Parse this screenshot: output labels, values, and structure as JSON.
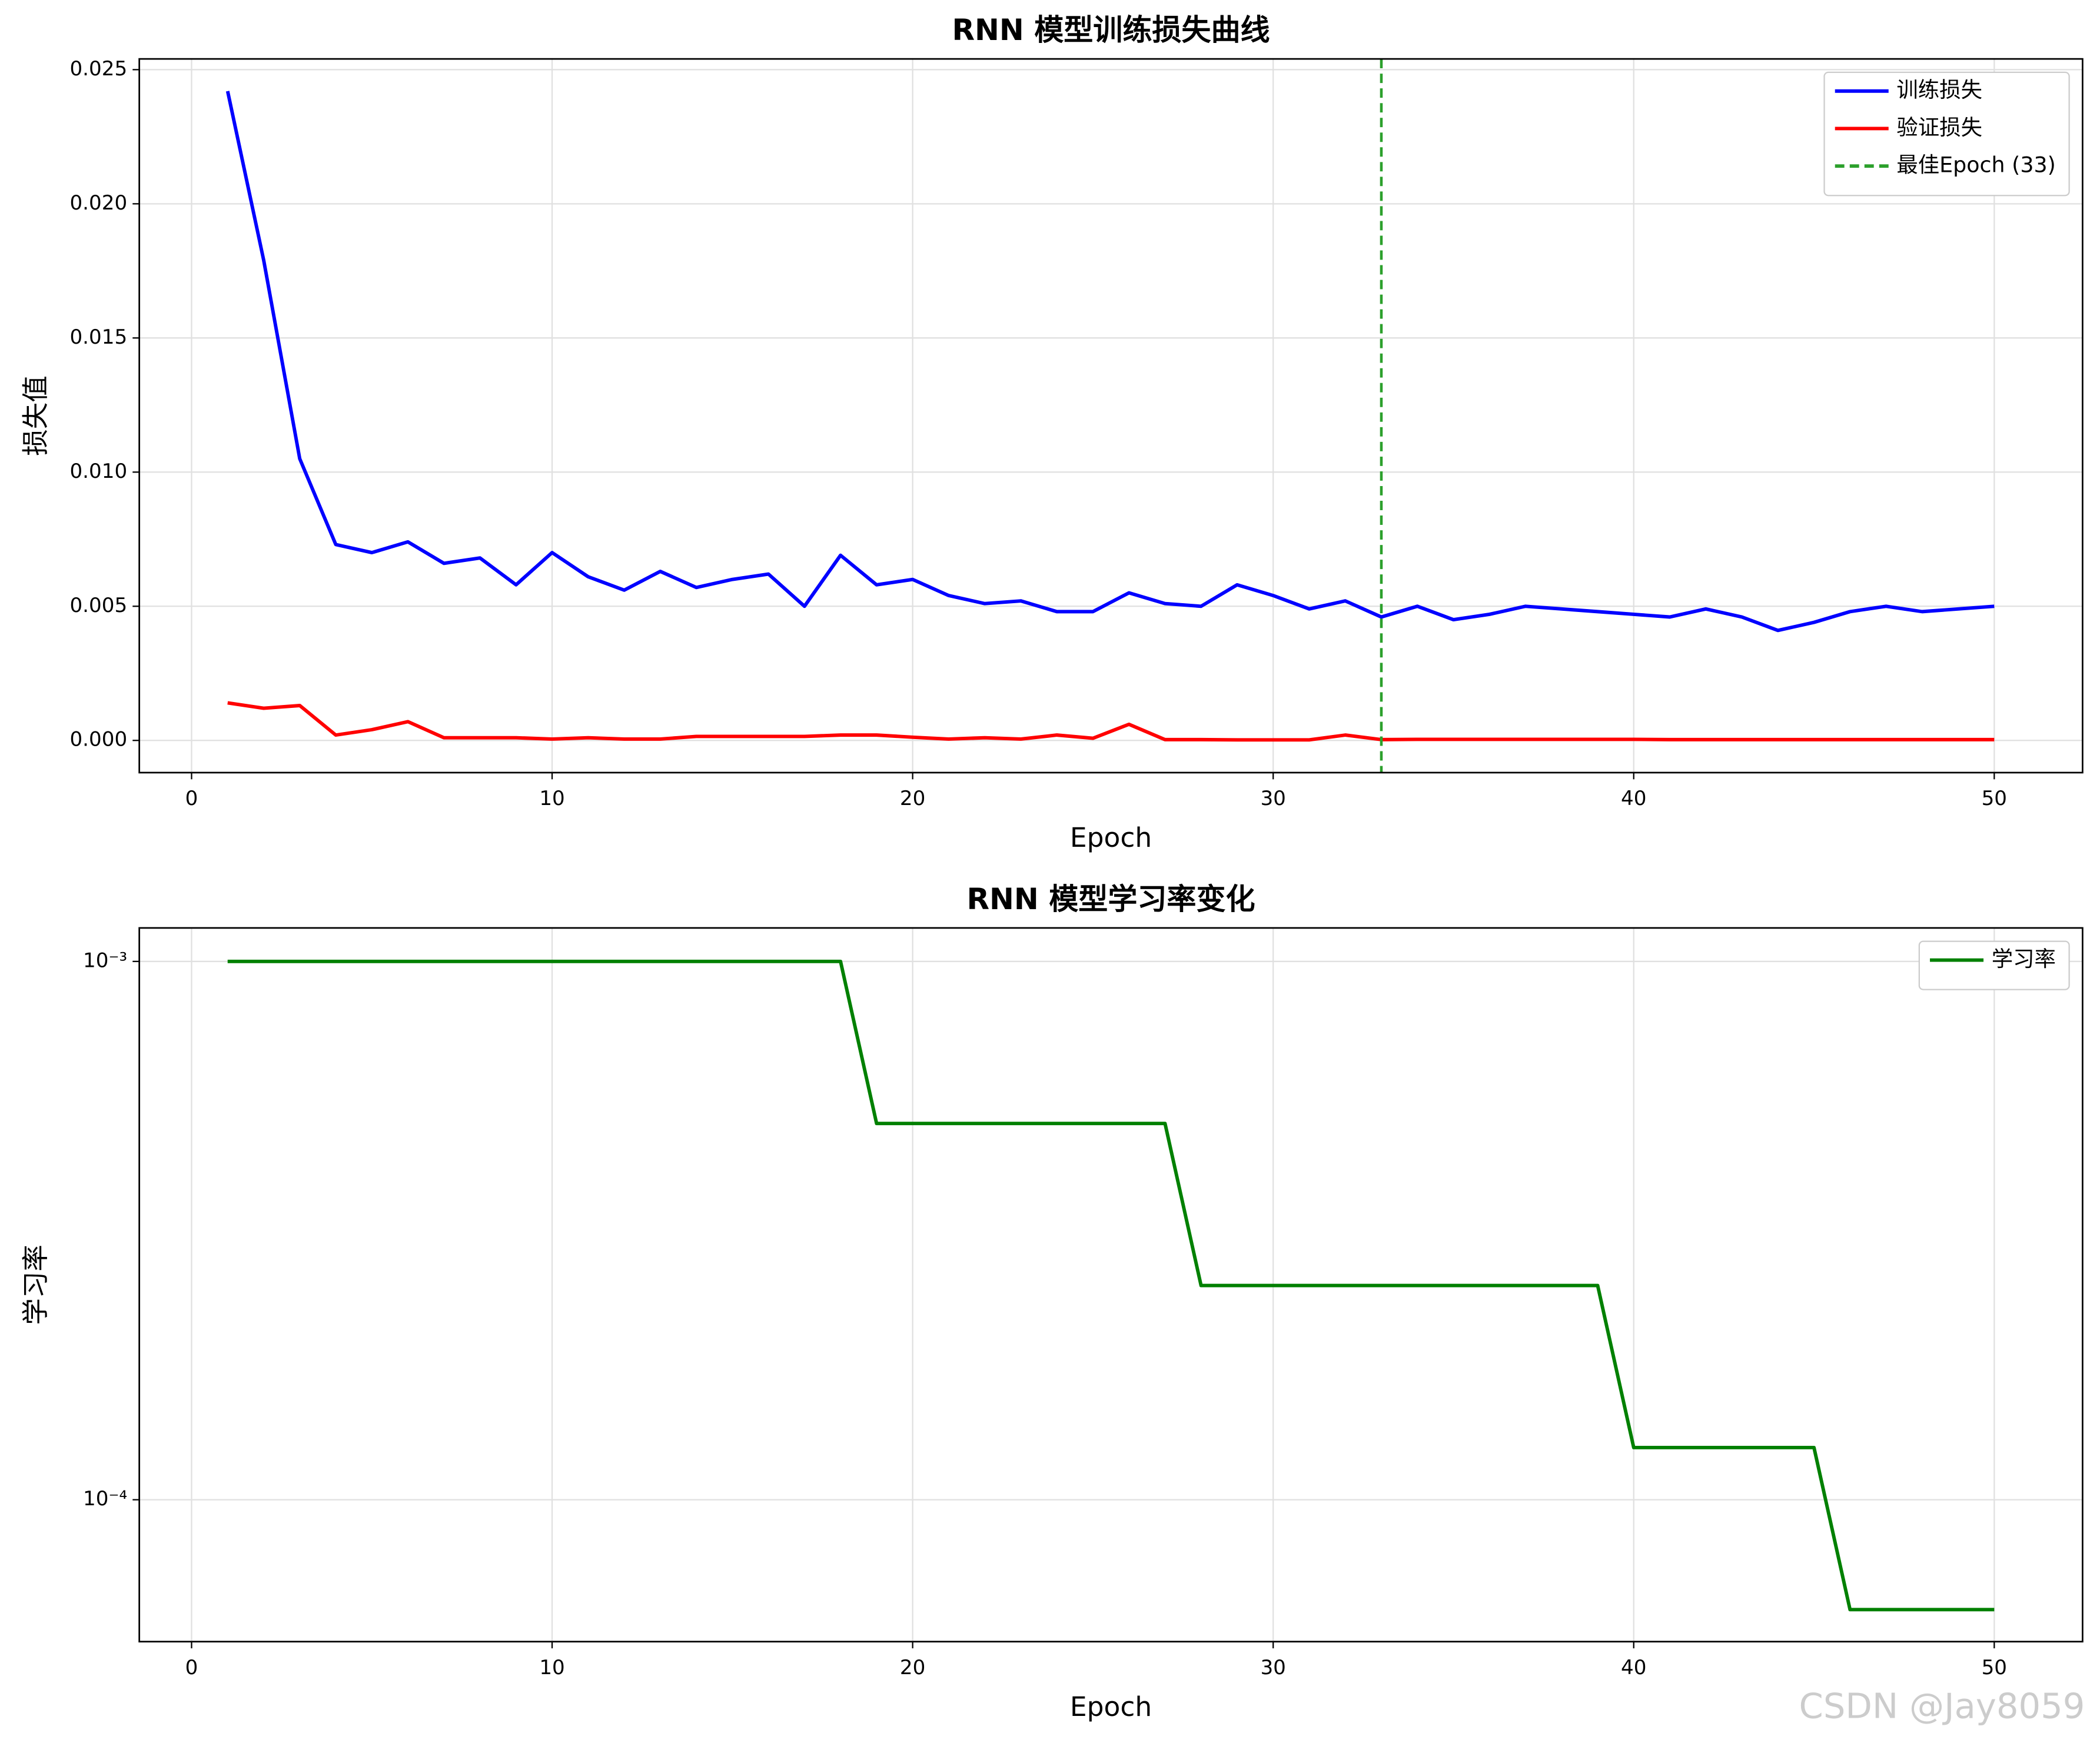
{
  "chart_data": [
    {
      "type": "line",
      "title": "RNN 模型训练损失曲线",
      "xlabel": "Epoch",
      "ylabel": "损失值",
      "x": [
        1,
        2,
        3,
        4,
        5,
        6,
        7,
        8,
        9,
        10,
        11,
        12,
        13,
        14,
        15,
        16,
        17,
        18,
        19,
        20,
        21,
        22,
        23,
        24,
        25,
        26,
        27,
        28,
        29,
        30,
        31,
        32,
        33,
        34,
        35,
        36,
        37,
        38,
        39,
        40,
        41,
        42,
        43,
        44,
        45,
        46,
        47,
        48,
        49,
        50
      ],
      "series": [
        {
          "name": "训练损失",
          "color": "#0000ff",
          "values": [
            0.0242,
            0.0179,
            0.0105,
            0.0073,
            0.007,
            0.0074,
            0.0066,
            0.0068,
            0.0058,
            0.007,
            0.0061,
            0.0056,
            0.0063,
            0.0057,
            0.006,
            0.0062,
            0.005,
            0.0069,
            0.0058,
            0.006,
            0.0054,
            0.0051,
            0.0052,
            0.0048,
            0.0048,
            0.0055,
            0.0051,
            0.005,
            0.0058,
            0.0054,
            0.0049,
            0.0052,
            0.0046,
            0.005,
            0.0045,
            0.0047,
            0.005,
            0.0049,
            0.0048,
            0.0047,
            0.0046,
            0.0049,
            0.0046,
            0.0041,
            0.0044,
            0.0048,
            0.005,
            0.0048,
            0.0049,
            0.005
          ]
        },
        {
          "name": "验证损失",
          "color": "#ff0000",
          "values": [
            0.0014,
            0.0012,
            0.0013,
            0.0002,
            0.0004,
            0.0007,
            0.0001,
            0.0001,
            0.0001,
            5e-05,
            0.0001,
            5e-05,
            5e-05,
            0.00015,
            0.00015,
            0.00015,
            0.00015,
            0.0002,
            0.0002,
            0.00012,
            5e-05,
            0.0001,
            5e-05,
            0.0002,
            8e-05,
            0.0006,
            3e-05,
            3e-05,
            2e-05,
            2e-05,
            2e-05,
            0.0002,
            3e-05,
            4e-05,
            4e-05,
            4e-05,
            4e-05,
            4e-05,
            4e-05,
            4e-05,
            3e-05,
            3e-05,
            3e-05,
            3e-05,
            3e-05,
            3e-05,
            3e-05,
            3e-05,
            3e-05,
            3e-05
          ]
        }
      ],
      "vline": {
        "name": "最佳Epoch (33)",
        "x": 33,
        "color": "#2ca02c"
      },
      "xlim": [
        -1.45,
        52.45
      ],
      "ylim": [
        -0.0012,
        0.0254
      ],
      "xticks": [
        0,
        10,
        20,
        30,
        40,
        50
      ],
      "yticks": [
        {
          "value": 0,
          "label": "0.000"
        },
        {
          "value": 0.005,
          "label": "0.005"
        },
        {
          "value": 0.01,
          "label": "0.010"
        },
        {
          "value": 0.015,
          "label": "0.015"
        },
        {
          "value": 0.02,
          "label": "0.020"
        },
        {
          "value": 0.025,
          "label": "0.025"
        }
      ],
      "grid": true,
      "legend": "upper right"
    },
    {
      "type": "line",
      "title": "RNN 模型学习率变化",
      "xlabel": "Epoch",
      "ylabel": "学习率",
      "yscale": "log",
      "x": [
        1,
        2,
        3,
        4,
        5,
        6,
        7,
        8,
        9,
        10,
        11,
        12,
        13,
        14,
        15,
        16,
        17,
        18,
        19,
        20,
        21,
        22,
        23,
        24,
        25,
        26,
        27,
        28,
        29,
        30,
        31,
        32,
        33,
        34,
        35,
        36,
        37,
        38,
        39,
        40,
        41,
        42,
        43,
        44,
        45,
        46,
        47,
        48,
        49,
        50
      ],
      "series": [
        {
          "name": "学习率",
          "color": "#008000",
          "values": [
            0.001,
            0.001,
            0.001,
            0.001,
            0.001,
            0.001,
            0.001,
            0.001,
            0.001,
            0.001,
            0.001,
            0.001,
            0.001,
            0.001,
            0.001,
            0.001,
            0.001,
            0.001,
            0.0005,
            0.0005,
            0.0005,
            0.0005,
            0.0005,
            0.0005,
            0.0005,
            0.0005,
            0.0005,
            0.00025,
            0.00025,
            0.00025,
            0.00025,
            0.00025,
            0.00025,
            0.00025,
            0.00025,
            0.00025,
            0.00025,
            0.00025,
            0.00025,
            0.000125,
            0.000125,
            0.000125,
            0.000125,
            0.000125,
            0.000125,
            6.25e-05,
            6.25e-05,
            6.25e-05,
            6.25e-05,
            6.25e-05
          ]
        }
      ],
      "xlim": [
        -1.45,
        52.45
      ],
      "ylim": [
        5.45e-05,
        0.001154
      ],
      "xticks": [
        0,
        10,
        20,
        30,
        40,
        50
      ],
      "yticks": [
        {
          "value": 0.0001,
          "label": "10⁻⁴"
        },
        {
          "value": 0.001,
          "label": "10⁻³"
        }
      ],
      "grid": true,
      "legend": "upper right"
    }
  ],
  "watermark": "CSDN @Jay8059"
}
